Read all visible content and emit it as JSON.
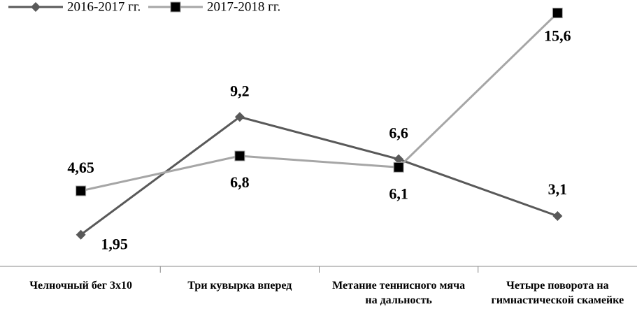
{
  "chart_data": {
    "type": "line",
    "categories": [
      "Челночный бег 3х10",
      "Три кувырка вперед",
      "Метание теннисного мяча на дальность",
      "Четыре поворота на гимнастической скамейке"
    ],
    "series": [
      {
        "name": "2016-2017 гг.",
        "color": "#595959",
        "marker": "diamond",
        "values": [
          1.95,
          9.2,
          6.6,
          3.1
        ],
        "value_labels": [
          "1,95",
          "9,2",
          "6,6",
          "3,1"
        ]
      },
      {
        "name": "2017-2018 гг.",
        "color": "#a6a6a6",
        "marker": "square",
        "values": [
          4.65,
          6.8,
          6.1,
          15.6
        ],
        "value_labels": [
          "4,65",
          "6,8",
          "6,1",
          "15,6"
        ]
      }
    ],
    "ylim": [
      0,
      16.4
    ],
    "legend": "top-left"
  }
}
